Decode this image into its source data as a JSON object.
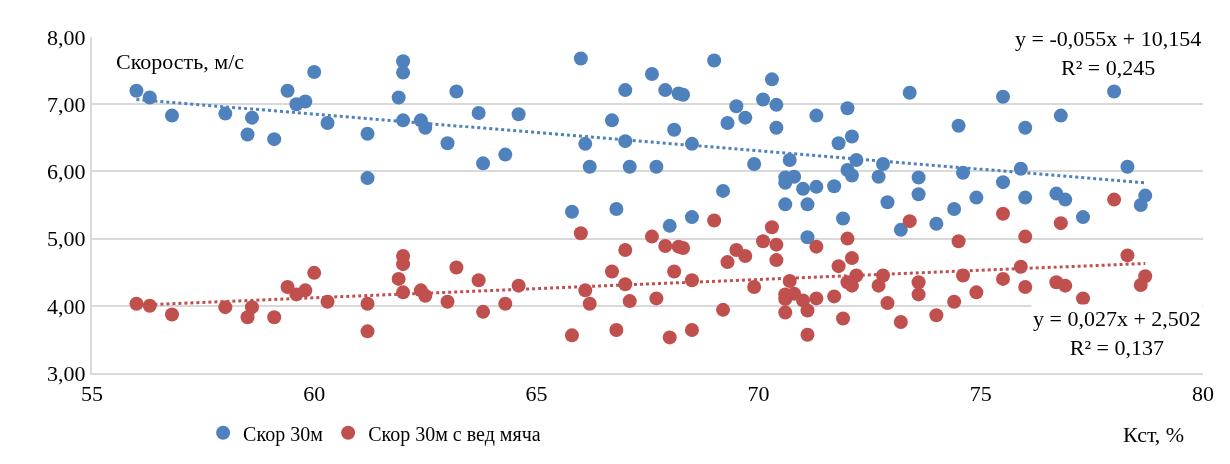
{
  "chart_data": {
    "type": "scatter",
    "ylabel": "Скорость, м/с",
    "xlabel": "Кст, %",
    "x": [
      56.0,
      56.3,
      56.8,
      58.0,
      58.6,
      58.5,
      59.1,
      59.4,
      59.6,
      59.8,
      60.0,
      60.3,
      61.2,
      61.2,
      62.0,
      62.0,
      61.9,
      62.0,
      62.4,
      62.5,
      63.0,
      63.2,
      63.7,
      63.8,
      64.3,
      64.6,
      65.8,
      66.0,
      66.1,
      66.2,
      66.7,
      66.8,
      67.0,
      67.0,
      67.1,
      67.6,
      67.7,
      67.9,
      68.0,
      68.1,
      68.2,
      68.3,
      68.5,
      68.5,
      69.0,
      69.2,
      69.3,
      69.5,
      69.7,
      69.9,
      70.1,
      70.3,
      70.4,
      70.4,
      70.6,
      70.8,
      70.6,
      70.7,
      70.6,
      71.0,
      71.1,
      71.1,
      71.3,
      71.3,
      71.7,
      71.8,
      71.9,
      72.0,
      72.0,
      72.1,
      72.1,
      72.2,
      72.7,
      72.8,
      72.9,
      73.2,
      73.4,
      73.6,
      73.6,
      74.0,
      74.4,
      74.5,
      74.6,
      74.9,
      75.5,
      75.5,
      75.9,
      76.0,
      76.0,
      76.7,
      76.8,
      76.9,
      77.3,
      78.0,
      78.3,
      78.6,
      78.7
    ],
    "series": [
      {
        "name": "Скор 30м",
        "color": "#4f81bd",
        "values": [
          7.2,
          7.1,
          6.83,
          6.86,
          6.8,
          6.55,
          6.48,
          7.2,
          7.0,
          7.04,
          7.48,
          6.72,
          6.56,
          5.9,
          7.64,
          7.47,
          7.1,
          6.76,
          6.76,
          6.65,
          6.42,
          7.19,
          6.87,
          6.12,
          6.25,
          6.85,
          5.4,
          7.68,
          6.41,
          6.07,
          6.76,
          5.44,
          7.21,
          6.45,
          6.07,
          7.45,
          6.07,
          7.21,
          5.19,
          6.62,
          7.16,
          7.14,
          5.32,
          6.41,
          7.65,
          5.71,
          6.72,
          6.97,
          6.8,
          6.11,
          7.07,
          7.37,
          6.99,
          6.65,
          5.91,
          5.92,
          5.83,
          6.17,
          5.51,
          5.74,
          5.51,
          5.02,
          6.83,
          5.77,
          5.78,
          6.42,
          5.3,
          6.94,
          6.02,
          6.52,
          5.94,
          6.17,
          5.92,
          6.11,
          5.54,
          5.13,
          7.17,
          5.91,
          5.66,
          5.22,
          5.44,
          6.68,
          5.98,
          5.61,
          7.11,
          5.84,
          6.04,
          6.65,
          5.61,
          5.67,
          6.83,
          5.58,
          5.32,
          7.19,
          6.07,
          5.5,
          5.64
        ]
      },
      {
        "name": "Скор 30м с вед мяча",
        "color": "#c0504d",
        "values": [
          4.03,
          4.0,
          3.87,
          3.98,
          3.98,
          3.83,
          3.83,
          4.28,
          4.17,
          4.23,
          4.49,
          4.06,
          4.03,
          3.62,
          4.74,
          4.62,
          4.4,
          4.2,
          4.23,
          4.15,
          4.06,
          4.57,
          4.38,
          3.91,
          4.03,
          4.3,
          3.56,
          5.08,
          4.23,
          4.03,
          4.51,
          3.64,
          4.83,
          4.32,
          4.07,
          5.03,
          4.11,
          4.89,
          3.53,
          4.51,
          4.88,
          4.86,
          3.64,
          4.38,
          5.27,
          3.94,
          4.65,
          4.83,
          4.74,
          4.28,
          4.96,
          5.17,
          4.91,
          4.68,
          4.17,
          4.18,
          4.1,
          4.37,
          3.9,
          4.08,
          3.93,
          3.57,
          4.88,
          4.11,
          4.14,
          4.59,
          3.81,
          5.0,
          4.35,
          4.71,
          4.3,
          4.45,
          4.3,
          4.45,
          4.04,
          3.76,
          5.26,
          4.35,
          4.17,
          3.86,
          4.06,
          4.96,
          4.45,
          4.2,
          5.37,
          4.4,
          4.58,
          5.03,
          4.28,
          4.35,
          5.23,
          4.3,
          4.11,
          5.58,
          4.75,
          4.31,
          4.44
        ]
      },
      {
        "type": "line",
        "color": "#4f81bd",
        "line_style": "dotted",
        "marker": "none",
        "x": [
          56.0,
          67.0,
          78.7
        ],
        "values": [
          7.07,
          6.47,
          5.83
        ]
      },
      {
        "type": "line",
        "color": "#c0504d",
        "line_style": "dotted",
        "marker": "none",
        "x": [
          56.0,
          67.0,
          78.7
        ],
        "values": [
          4.01,
          4.31,
          4.63
        ]
      }
    ],
    "annotations": [
      "y = -0,055x + 10,154\nR² = 0,245",
      "y = 0,027x + 2,502\nR² = 0,137"
    ],
    "marker": "circle",
    "xlim": [
      55,
      80
    ],
    "xticks": [
      55,
      60,
      65,
      70,
      75,
      80
    ],
    "ylim": [
      3,
      8
    ],
    "yticks": [
      {
        "value": 3,
        "label": "3,00"
      },
      {
        "value": 4,
        "label": "4,00"
      },
      {
        "value": 5,
        "label": "5,00"
      },
      {
        "value": 6,
        "label": "6,00"
      },
      {
        "value": 7,
        "label": "7,00"
      },
      {
        "value": 8,
        "label": "8,00"
      }
    ],
    "grid": "y",
    "legend": "bottom"
  }
}
